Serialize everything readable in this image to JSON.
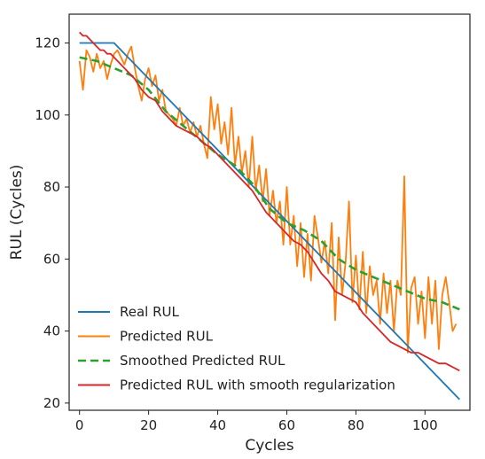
{
  "chart_data": {
    "type": "line",
    "title": "",
    "xlabel": "Cycles",
    "ylabel": "RUL (Cycles)",
    "xlim": [
      -3,
      113
    ],
    "ylim": [
      18,
      128
    ],
    "x_ticks": [
      0,
      20,
      40,
      60,
      80,
      100
    ],
    "y_ticks": [
      20,
      40,
      60,
      80,
      100,
      120
    ],
    "grid": false,
    "legend_position": "bottom-left",
    "series": [
      {
        "name": "Real RUL",
        "color": "#1f77b4",
        "style": "solid",
        "x": [
          0,
          10,
          110
        ],
        "y": [
          120,
          120,
          21
        ]
      },
      {
        "name": "Predicted RUL",
        "color": "#ff7f0e",
        "style": "solid",
        "x": [
          0,
          1,
          2,
          3,
          4,
          5,
          6,
          7,
          8,
          9,
          10,
          11,
          12,
          13,
          14,
          15,
          16,
          17,
          18,
          19,
          20,
          21,
          22,
          23,
          24,
          25,
          26,
          27,
          28,
          29,
          30,
          31,
          32,
          33,
          34,
          35,
          36,
          37,
          38,
          39,
          40,
          41,
          42,
          43,
          44,
          45,
          46,
          47,
          48,
          49,
          50,
          51,
          52,
          53,
          54,
          55,
          56,
          57,
          58,
          59,
          60,
          61,
          62,
          63,
          64,
          65,
          66,
          67,
          68,
          69,
          70,
          71,
          72,
          73,
          74,
          75,
          76,
          77,
          78,
          79,
          80,
          81,
          82,
          83,
          84,
          85,
          86,
          87,
          88,
          89,
          90,
          91,
          92,
          93,
          94,
          95,
          96,
          97,
          98,
          99,
          100,
          101,
          102,
          103,
          104,
          105,
          106,
          107,
          108,
          109
        ],
        "y": [
          115,
          107,
          118,
          116,
          112,
          117,
          113,
          115,
          110,
          114,
          117,
          118,
          116,
          114,
          117,
          119,
          113,
          108,
          104,
          110,
          113,
          108,
          111,
          104,
          107,
          101,
          100,
          99,
          97,
          102,
          97,
          99,
          95,
          98,
          94,
          97,
          92,
          88,
          105,
          96,
          103,
          92,
          98,
          89,
          102,
          86,
          94,
          84,
          90,
          80,
          94,
          79,
          86,
          76,
          85,
          72,
          79,
          70,
          76,
          64,
          80,
          64,
          72,
          58,
          70,
          55,
          67,
          54,
          72,
          66,
          59,
          65,
          56,
          70,
          43,
          66,
          50,
          59,
          76,
          48,
          61,
          46,
          62,
          45,
          58,
          50,
          54,
          42,
          56,
          45,
          54,
          40,
          54,
          50,
          83,
          34,
          52,
          55,
          42,
          51,
          38,
          55,
          42,
          54,
          35,
          50,
          55,
          48,
          40,
          42
        ]
      },
      {
        "name": "Smoothed Predicted RUL",
        "color": "#2ca02c",
        "style": "dashed",
        "x": [
          0,
          5,
          10,
          15,
          20,
          25,
          30,
          35,
          40,
          45,
          50,
          55,
          60,
          65,
          70,
          75,
          80,
          85,
          90,
          95,
          100,
          105,
          110
        ],
        "y": [
          116,
          115,
          113,
          111,
          107,
          101,
          97,
          93,
          89,
          86,
          81,
          74,
          70,
          68,
          65,
          60,
          57,
          55,
          53,
          51,
          49,
          48,
          46
        ]
      },
      {
        "name": "Predicted RUL with smooth regularization",
        "color": "#d62728",
        "style": "solid",
        "x": [
          0,
          1,
          2,
          3,
          4,
          5,
          6,
          7,
          8,
          9,
          10,
          12,
          14,
          16,
          18,
          20,
          22,
          24,
          26,
          28,
          30,
          32,
          34,
          36,
          38,
          40,
          42,
          44,
          46,
          48,
          50,
          52,
          54,
          56,
          58,
          60,
          62,
          64,
          66,
          68,
          70,
          72,
          74,
          76,
          78,
          80,
          82,
          84,
          86,
          88,
          90,
          92,
          94,
          96,
          98,
          100,
          102,
          104,
          106,
          108,
          110
        ],
        "y": [
          123,
          122,
          122,
          121,
          120,
          119,
          118,
          118,
          117,
          117,
          116,
          114,
          112,
          110,
          107,
          105,
          104,
          101,
          99,
          97,
          96,
          95,
          94,
          92,
          91,
          89,
          87,
          85,
          83,
          81,
          79,
          76,
          73,
          71,
          69,
          67,
          65,
          64,
          62,
          59,
          56,
          54,
          51,
          50,
          49,
          48,
          45,
          43,
          41,
          39,
          37,
          36,
          35,
          34,
          34,
          33,
          32,
          31,
          31,
          30,
          29
        ]
      }
    ]
  }
}
